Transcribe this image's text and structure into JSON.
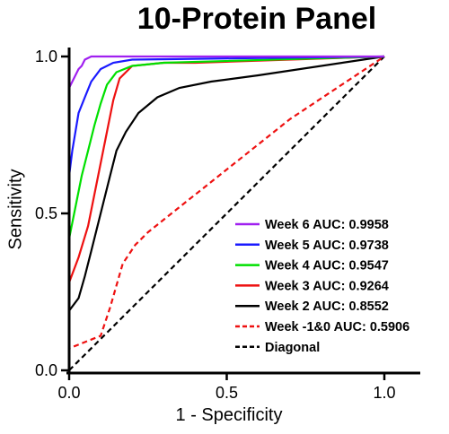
{
  "chart_data": {
    "type": "line",
    "title": "10-Protein Panel",
    "xlabel": "1 - Specificity",
    "ylabel": "Sensitivity",
    "xlim": [
      0,
      1
    ],
    "ylim": [
      0,
      1
    ],
    "xticks": [
      "0.0",
      "0.5",
      "1.0"
    ],
    "yticks": [
      "0.0",
      "0.5",
      "1.0"
    ],
    "grid": false,
    "legend_position": "bottom-right",
    "series": [
      {
        "name": "Week 6  AUC: 0.9958",
        "color": "#a020f0",
        "dash": "solid",
        "x": [
          0,
          0,
          0.01,
          0.02,
          0.03,
          0.04,
          0.05,
          0.07,
          1.0
        ],
        "y": [
          0,
          0.9,
          0.92,
          0.94,
          0.96,
          0.97,
          0.99,
          1.0,
          1.0
        ]
      },
      {
        "name": "Week 5  AUC: 0.9738",
        "color": "#1a1aff",
        "dash": "solid",
        "x": [
          0,
          0,
          0.01,
          0.02,
          0.03,
          0.05,
          0.07,
          0.1,
          0.14,
          0.2,
          1.0
        ],
        "y": [
          0,
          0.62,
          0.7,
          0.76,
          0.82,
          0.87,
          0.92,
          0.96,
          0.98,
          0.99,
          1.0
        ]
      },
      {
        "name": "Week 4  AUC: 0.9547",
        "color": "#00e000",
        "dash": "solid",
        "x": [
          0,
          0,
          0.02,
          0.04,
          0.06,
          0.08,
          0.1,
          0.12,
          0.15,
          0.2,
          0.3,
          1.0
        ],
        "y": [
          0,
          0.42,
          0.52,
          0.62,
          0.7,
          0.78,
          0.85,
          0.91,
          0.95,
          0.97,
          0.98,
          1.0
        ]
      },
      {
        "name": "Week 3  AUC: 0.9264",
        "color": "#ee1111",
        "dash": "solid",
        "x": [
          0,
          0,
          0.03,
          0.06,
          0.08,
          0.1,
          0.12,
          0.14,
          0.16,
          0.2,
          0.3,
          0.4,
          1.0
        ],
        "y": [
          0,
          0.28,
          0.36,
          0.46,
          0.56,
          0.66,
          0.76,
          0.86,
          0.93,
          0.97,
          0.98,
          0.98,
          1.0
        ]
      },
      {
        "name": "Week 2  AUC: 0.8552",
        "color": "#000000",
        "dash": "solid",
        "x": [
          0,
          0,
          0.03,
          0.05,
          0.07,
          0.09,
          0.11,
          0.13,
          0.15,
          0.18,
          0.22,
          0.28,
          0.35,
          0.45,
          0.6,
          1.0
        ],
        "y": [
          0,
          0.19,
          0.23,
          0.3,
          0.38,
          0.46,
          0.54,
          0.62,
          0.7,
          0.76,
          0.82,
          0.87,
          0.9,
          0.92,
          0.94,
          1.0
        ]
      },
      {
        "name": "Week -1&0  AUC: 0.5906",
        "color": "#ee1111",
        "dash": "dashed",
        "x": [
          0,
          0,
          0.05,
          0.1,
          0.13,
          0.17,
          0.21,
          0.25,
          0.3,
          0.35,
          0.45,
          0.55,
          0.7,
          0.85,
          1.0
        ],
        "y": [
          0,
          0.07,
          0.09,
          0.11,
          0.2,
          0.34,
          0.4,
          0.44,
          0.48,
          0.52,
          0.6,
          0.68,
          0.8,
          0.9,
          1.0
        ]
      },
      {
        "name": "Diagonal",
        "color": "#000000",
        "dash": "dashed",
        "x": [
          0,
          1
        ],
        "y": [
          0,
          1
        ]
      }
    ]
  }
}
